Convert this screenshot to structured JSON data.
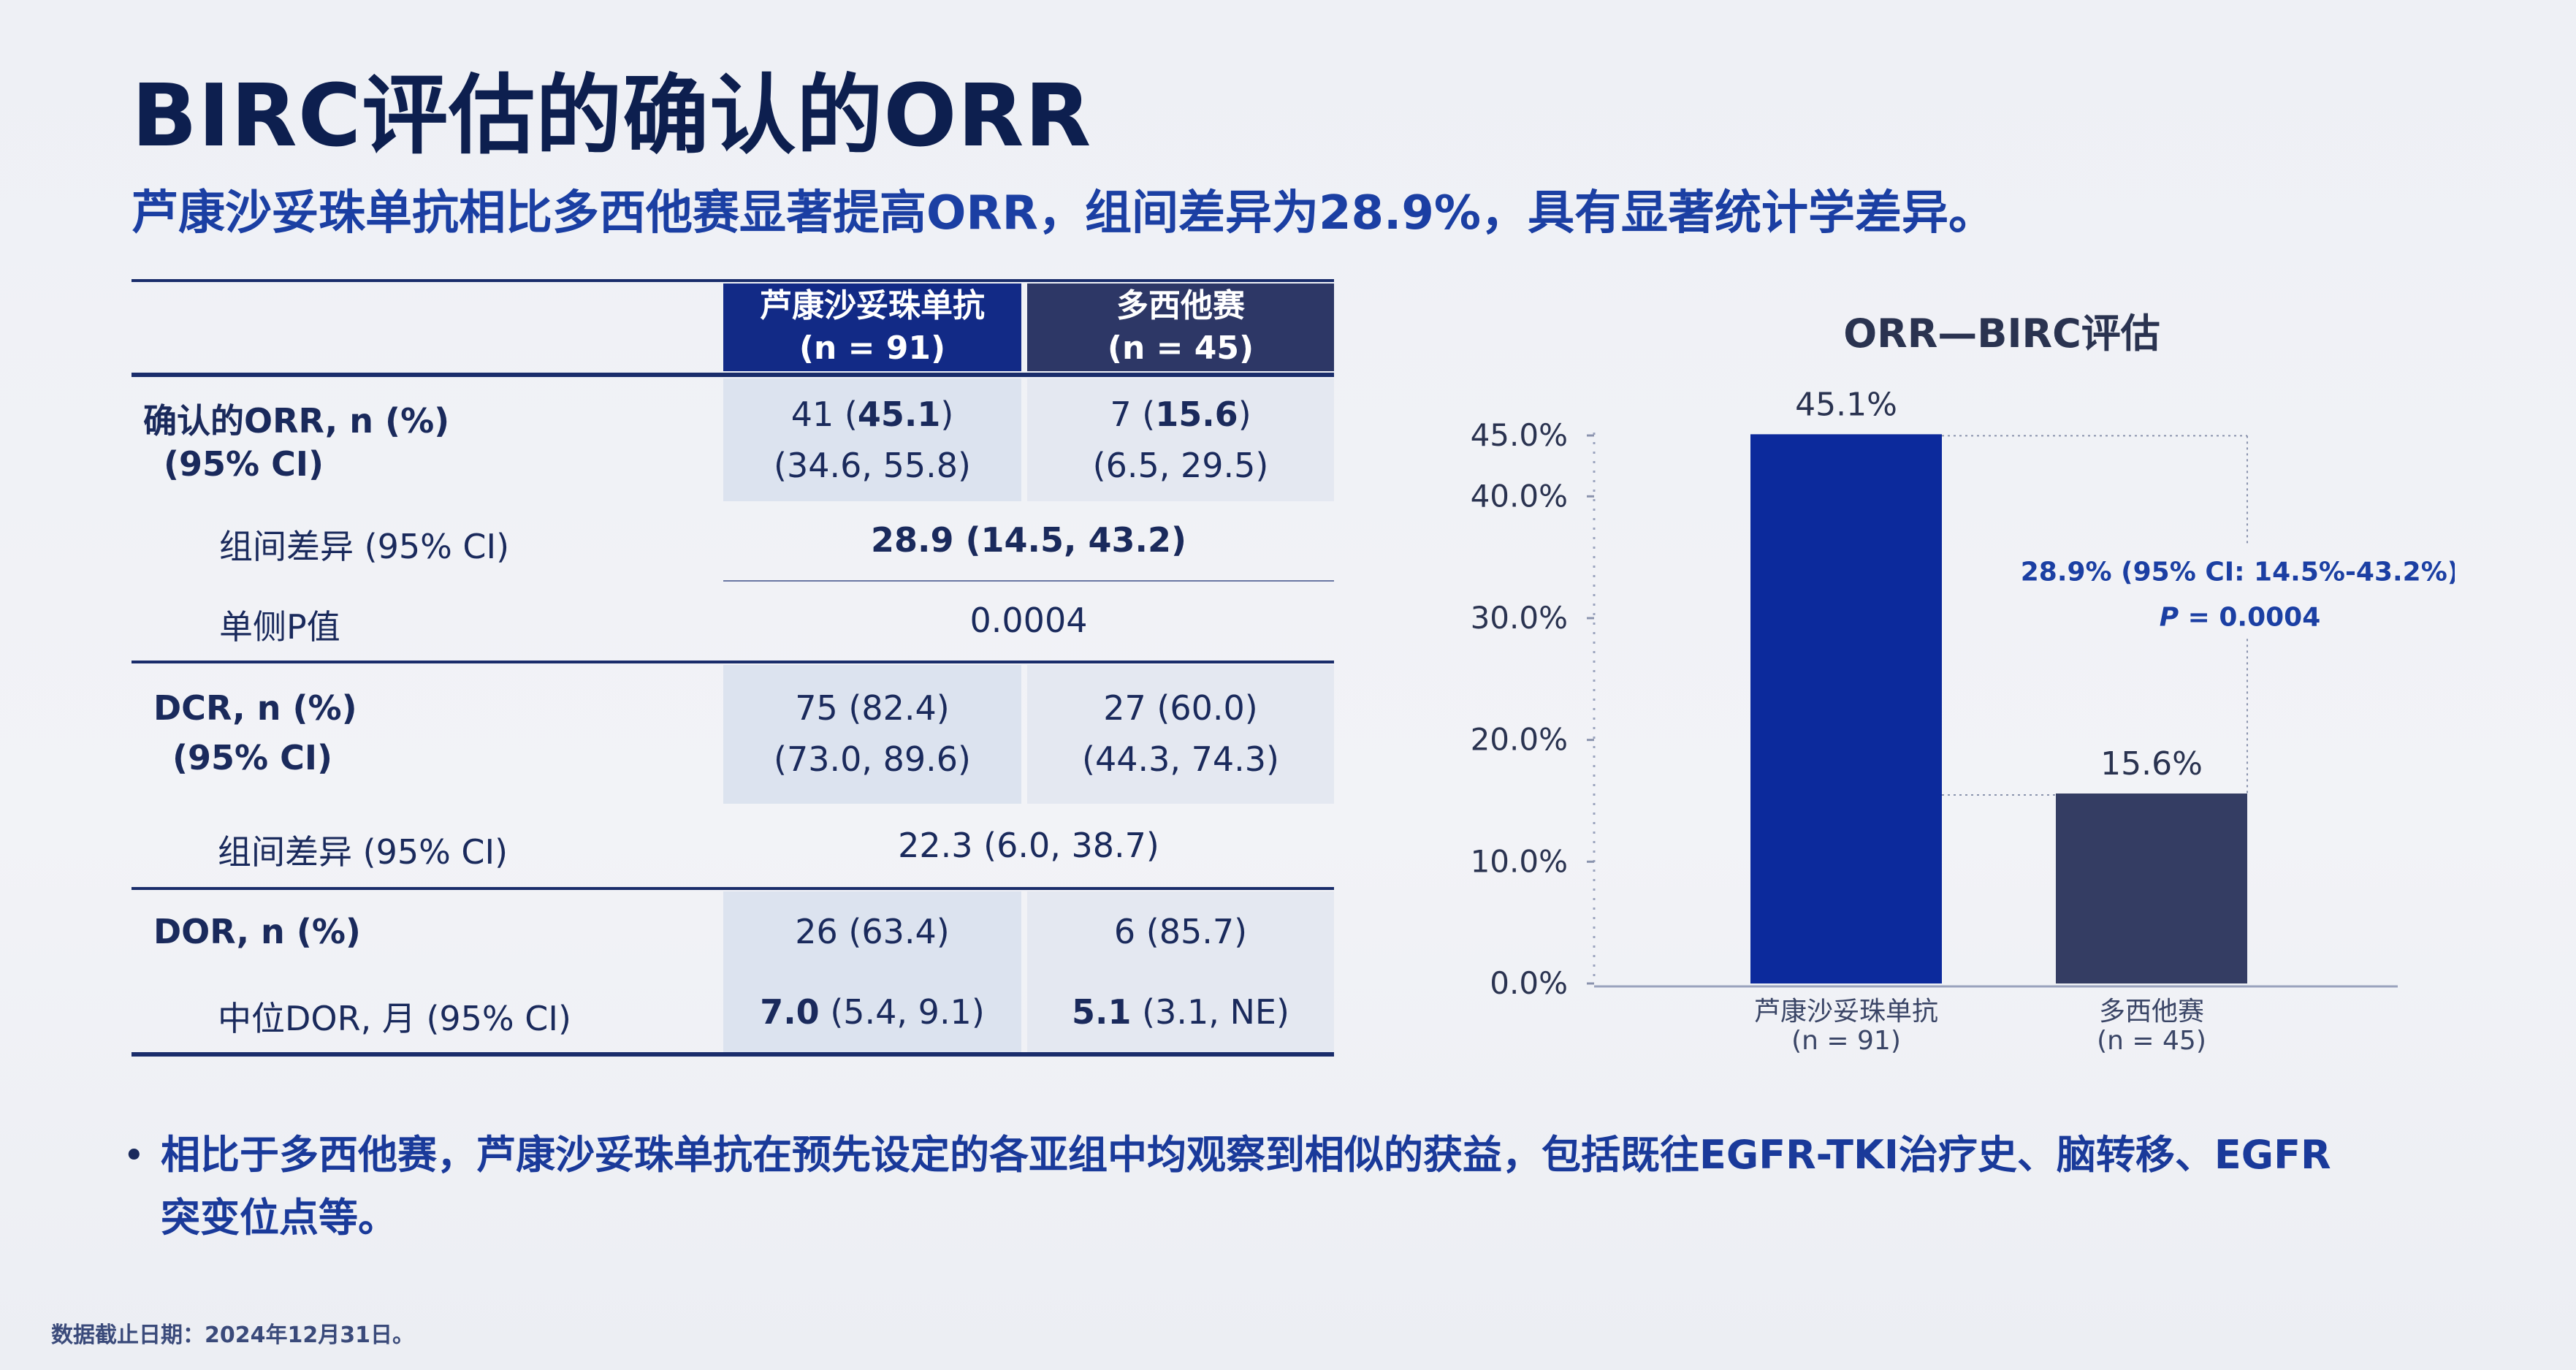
{
  "title": "BIRC评估的确认的ORR",
  "subtitle": "芦康沙妥珠单抗相比多西他赛显著提高ORR，组间差异为28.9%，具有显著统计学差异。",
  "table": {
    "col1_name": "芦康沙妥珠单抗",
    "col1_n": "(n = 91)",
    "col2_name": "多西他赛",
    "col2_n": "(n = 45)",
    "orr_label": "确认的ORR, n (%)",
    "orr_ci_label": "(95% CI)",
    "orr_col1_n": "41 (",
    "orr_col1_pct": "45.1",
    "orr_col1_close": ")",
    "orr_col1_ci": "(34.6, 55.8)",
    "orr_col2_n": "7 (",
    "orr_col2_pct": "15.6",
    "orr_col2_close": ")",
    "orr_col2_ci": "(6.5, 29.5)",
    "orr_diff_label": "组间差异 (95% CI)",
    "orr_diff_value": "28.9 (14.5, 43.2)",
    "p_label": "单侧P值",
    "p_value": "0.0004",
    "dcr_label": "DCR, n (%)",
    "dcr_ci_label": "(95% CI)",
    "dcr_col1": "75 (82.4)",
    "dcr_col1_ci": "(73.0, 89.6)",
    "dcr_col2": "27 (60.0)",
    "dcr_col2_ci": "(44.3, 74.3)",
    "dcr_diff_label": "组间差异 (95% CI)",
    "dcr_diff_value": "22.3 (6.0, 38.7)",
    "dor_label": "DOR, n (%)",
    "dor_col1": "26 (63.4)",
    "dor_col2": "6 (85.7)",
    "mdor_label": "中位DOR, 月 (95% CI)",
    "mdor_col1_bold": "7.0",
    "mdor_col1_rest": " (5.4, 9.1)",
    "mdor_col2_bold": "5.1",
    "mdor_col2_rest": " (3.1, NE)"
  },
  "chart_data": {
    "type": "bar",
    "title": "ORR—BIRC评估",
    "categories": [
      "芦康沙妥珠单抗",
      "多西他赛"
    ],
    "category_n": [
      "(n = 91)",
      "(n = 45)"
    ],
    "values": [
      45.1,
      15.6
    ],
    "value_labels": [
      "45.1%",
      "15.6%"
    ],
    "colors": [
      "#0c2a9c",
      "#343d63"
    ],
    "y_ticks": [
      0,
      10,
      20,
      30,
      40,
      45
    ],
    "y_tick_labels": [
      "0.0%",
      "10.0%",
      "20.0%",
      "30.0%",
      "40.0%",
      "45.0%"
    ],
    "ylim": [
      0,
      45
    ],
    "annotation_diff": "28.9% (95% CI: 14.5%-43.2%)",
    "annotation_p_italic": "P",
    "annotation_p_rest": " = 0.0004",
    "grid": false
  },
  "bullet": "相比于多西他赛，芦康沙妥珠单抗在预先设定的各亚组中均观察到相似的获益，包括既往EGFR-TKI治疗史、脑转移、EGFR突变位点等。",
  "footnote": "数据截止日期：2024年12月31日。"
}
